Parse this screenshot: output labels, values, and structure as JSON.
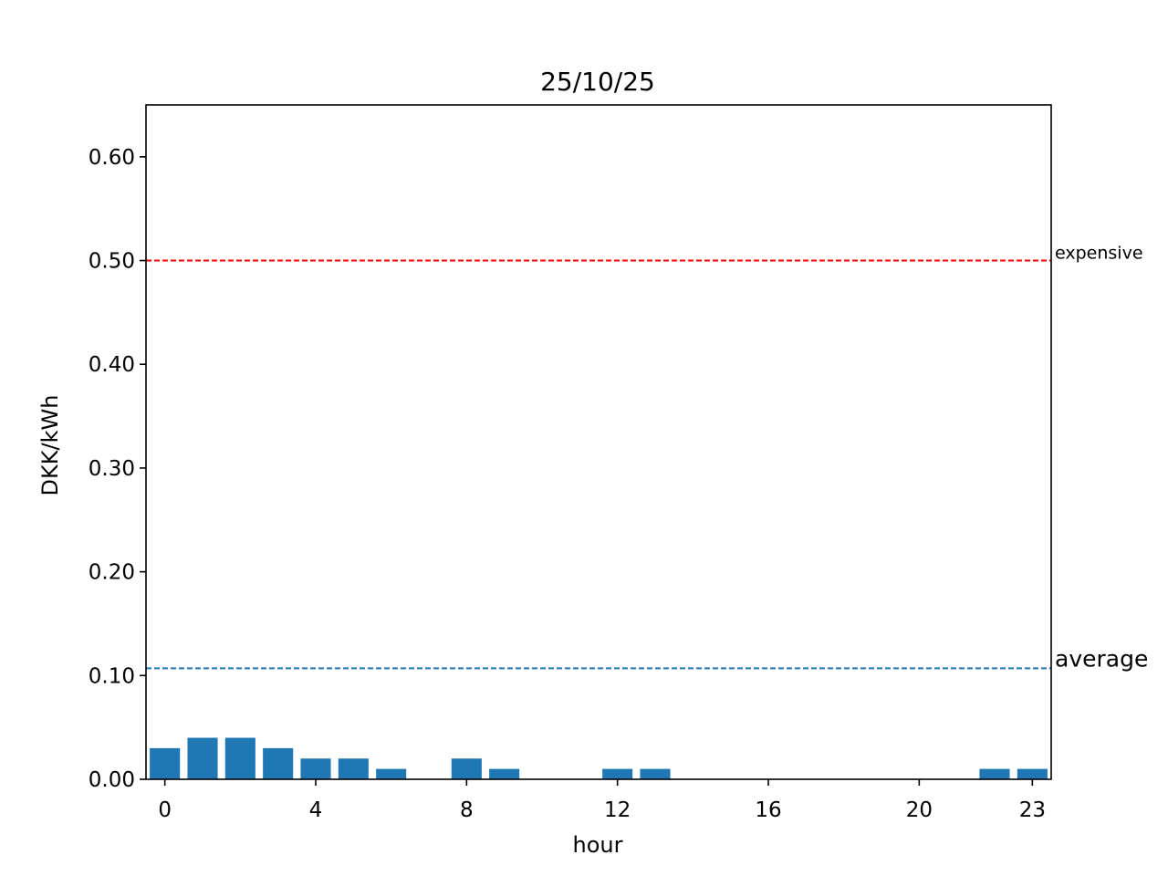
{
  "chart_data": {
    "type": "bar",
    "title": "25/10/25",
    "xlabel": "hour",
    "ylabel": "DKK/kWh",
    "x": [
      0,
      1,
      2,
      3,
      4,
      5,
      6,
      7,
      8,
      9,
      10,
      11,
      12,
      13,
      14,
      15,
      16,
      17,
      18,
      19,
      20,
      21,
      22,
      23
    ],
    "values": [
      0.03,
      0.04,
      0.04,
      0.03,
      0.02,
      0.02,
      0.01,
      0.0,
      0.02,
      0.01,
      0.0,
      0.0,
      0.01,
      0.01,
      0.0,
      0.0,
      0.0,
      0.0,
      0.0,
      0.0,
      0.0,
      0.0,
      0.01,
      0.01
    ],
    "xticks": [
      0,
      4,
      8,
      12,
      16,
      20,
      23
    ],
    "xtick_labels": [
      "0",
      "4",
      "8",
      "12",
      "16",
      "20",
      "23"
    ],
    "yticks": [
      0.0,
      0.1,
      0.2,
      0.3,
      0.4,
      0.5,
      0.6
    ],
    "ytick_labels": [
      "0.00",
      "0.10",
      "0.20",
      "0.30",
      "0.40",
      "0.50",
      "0.60"
    ],
    "xlim": [
      -0.5,
      23.5
    ],
    "ylim": [
      0,
      0.65
    ],
    "grid": false,
    "bar_color": "#1f77b4",
    "reference_lines": [
      {
        "label": "expensive",
        "value": 0.5,
        "color": "#ff0000",
        "style": "dashed",
        "label_size": "small"
      },
      {
        "label": "average",
        "value": 0.107,
        "color": "#1f77b4",
        "style": "dashed",
        "label_size": "large"
      }
    ]
  }
}
